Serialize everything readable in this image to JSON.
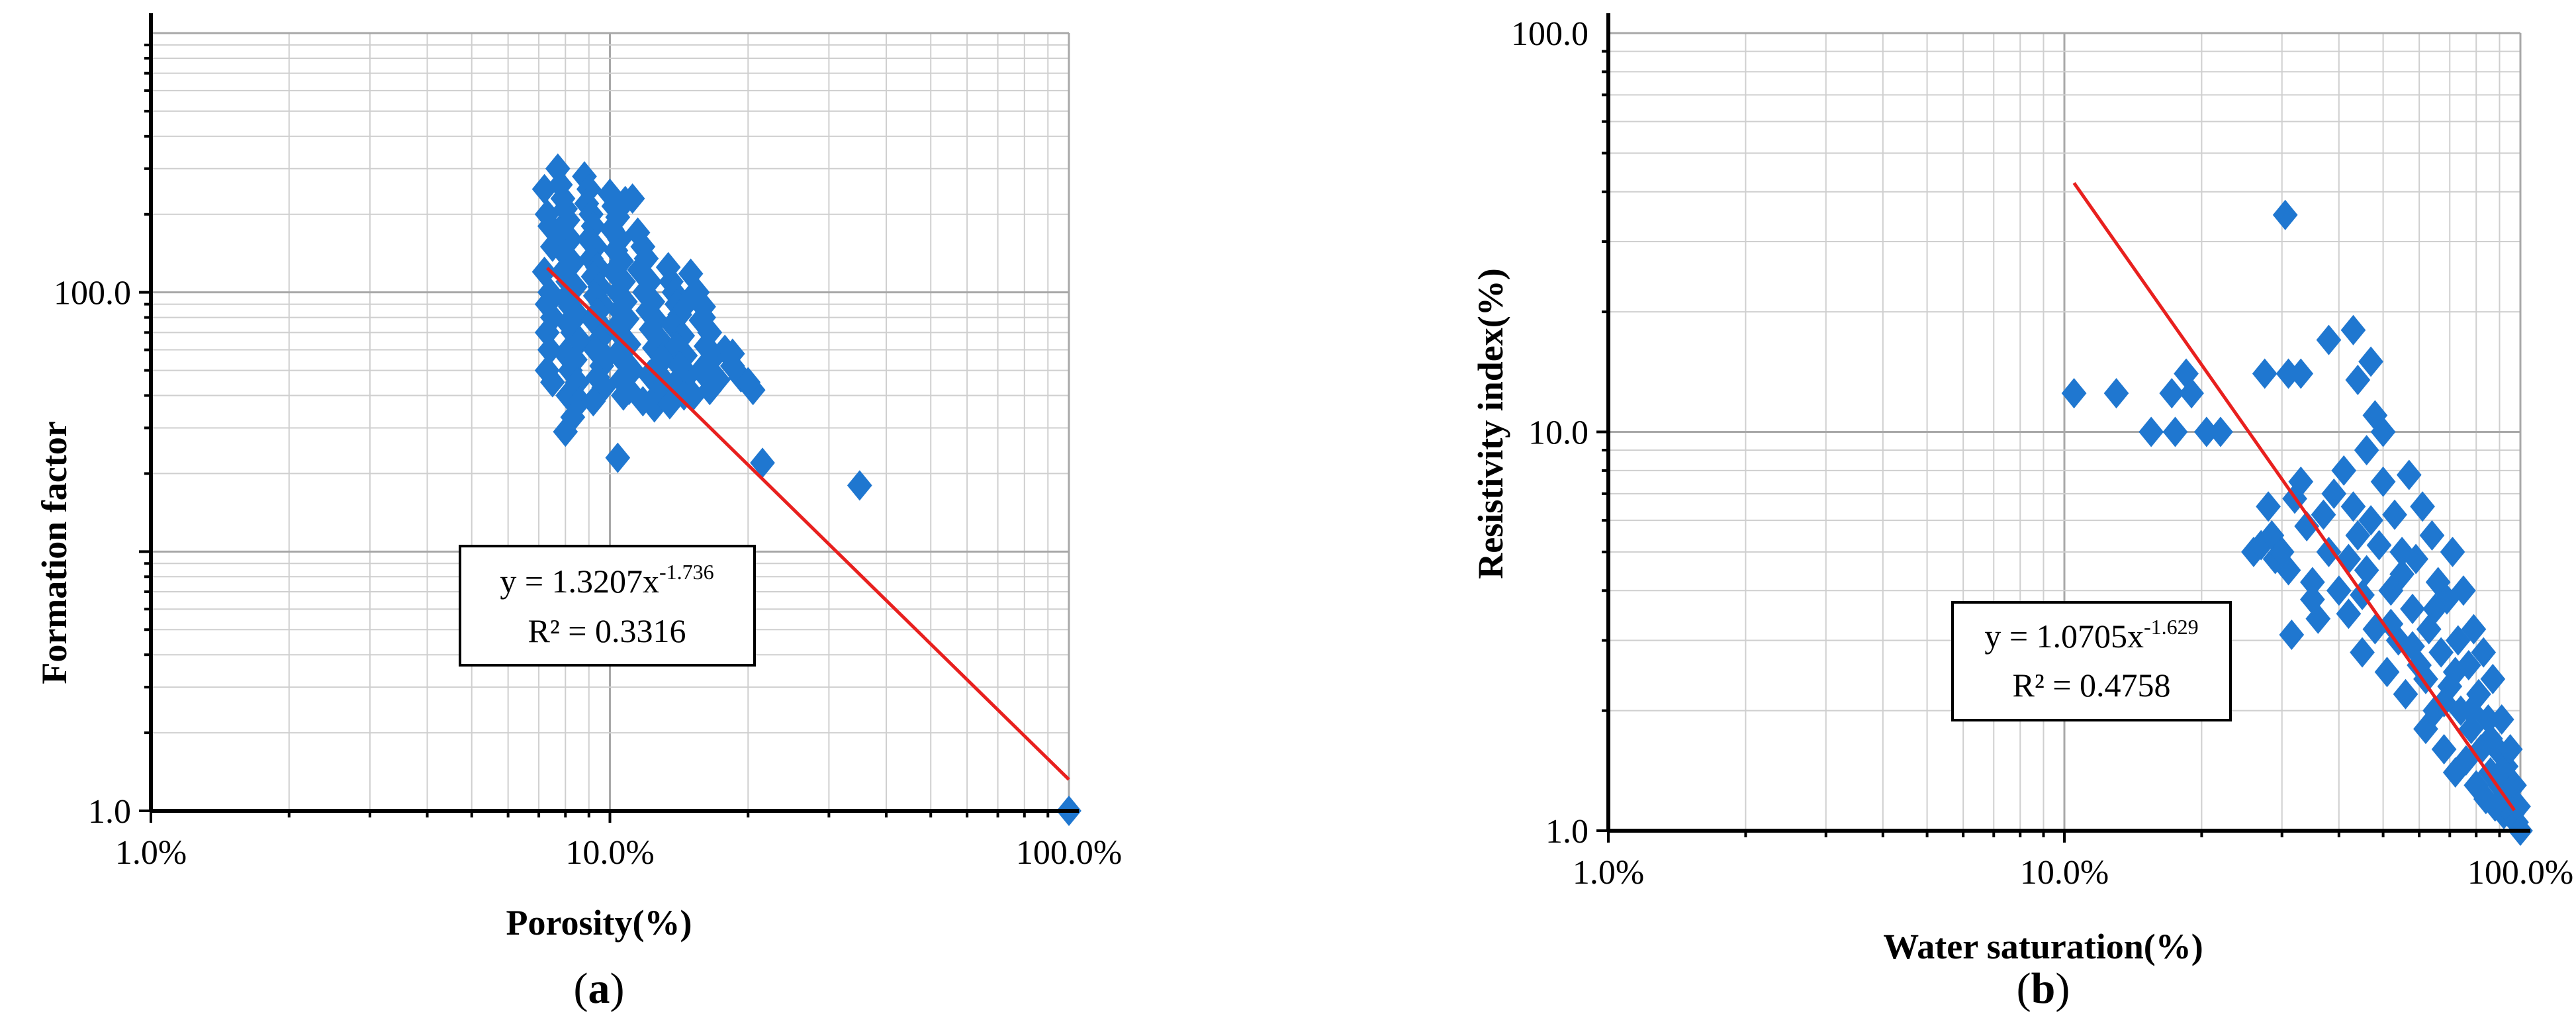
{
  "colors": {
    "marker": "#1f77d0",
    "fit_line": "#e8201e",
    "grid": "#c8c8c8",
    "axis": "#000000"
  },
  "chart_data": [
    {
      "panel": "a",
      "panel_label": "a",
      "type": "scatter",
      "title": "",
      "xlabel": "Porosity(%)",
      "ylabel": "Formation factor",
      "x_scale": "log",
      "y_scale": "log",
      "xlim": [
        0.01,
        1.0
      ],
      "ylim": [
        1.0,
        1000.0
      ],
      "x_ticks": [
        {
          "value": 0.01,
          "label": "1.0%"
        },
        {
          "value": 0.1,
          "label": "10.0%"
        },
        {
          "value": 1.0,
          "label": "100.0%"
        }
      ],
      "y_ticks": [
        {
          "value": 1.0,
          "label": "1.0"
        },
        {
          "value": 100.0,
          "label": "100.0"
        }
      ],
      "grid": true,
      "marker": "diamond",
      "trendline": {
        "type": "power",
        "a": 1.3207,
        "b": -1.736,
        "x_range": [
          0.073,
          1.0
        ]
      },
      "equation": {
        "prefix": "y = 1.3207x",
        "exponent": "-1.736",
        "r2": "R² = 0.3316"
      },
      "points": [
        [
          0.072,
          250
        ],
        [
          0.073,
          200
        ],
        [
          0.074,
          180
        ],
        [
          0.075,
          150
        ],
        [
          0.072,
          120
        ],
        [
          0.074,
          100
        ],
        [
          0.073,
          90
        ],
        [
          0.075,
          80
        ],
        [
          0.073,
          70
        ],
        [
          0.074,
          60
        ],
        [
          0.073,
          50
        ],
        [
          0.075,
          45
        ],
        [
          0.077,
          300
        ],
        [
          0.078,
          260
        ],
        [
          0.079,
          230
        ],
        [
          0.08,
          210
        ],
        [
          0.081,
          190
        ],
        [
          0.078,
          170
        ],
        [
          0.082,
          160
        ],
        [
          0.08,
          140
        ],
        [
          0.083,
          130
        ],
        [
          0.079,
          120
        ],
        [
          0.081,
          110
        ],
        [
          0.084,
          105
        ],
        [
          0.08,
          95
        ],
        [
          0.082,
          88
        ],
        [
          0.085,
          82
        ],
        [
          0.081,
          76
        ],
        [
          0.083,
          70
        ],
        [
          0.086,
          65
        ],
        [
          0.08,
          58
        ],
        [
          0.084,
          55
        ],
        [
          0.082,
          50
        ],
        [
          0.085,
          45
        ],
        [
          0.081,
          40
        ],
        [
          0.086,
          38
        ],
        [
          0.08,
          29
        ],
        [
          0.083,
          33
        ],
        [
          0.088,
          280
        ],
        [
          0.09,
          250
        ],
        [
          0.089,
          220
        ],
        [
          0.091,
          200
        ],
        [
          0.092,
          180
        ],
        [
          0.09,
          160
        ],
        [
          0.093,
          150
        ],
        [
          0.091,
          135
        ],
        [
          0.094,
          125
        ],
        [
          0.092,
          115
        ],
        [
          0.095,
          105
        ],
        [
          0.093,
          97
        ],
        [
          0.096,
          90
        ],
        [
          0.094,
          84
        ],
        [
          0.092,
          78
        ],
        [
          0.097,
          72
        ],
        [
          0.095,
          66
        ],
        [
          0.093,
          60
        ],
        [
          0.098,
          56
        ],
        [
          0.096,
          52
        ],
        [
          0.094,
          47
        ],
        [
          0.097,
          43
        ],
        [
          0.092,
          38
        ],
        [
          0.1,
          240
        ],
        [
          0.102,
          215
        ],
        [
          0.104,
          195
        ],
        [
          0.101,
          175
        ],
        [
          0.105,
          160
        ],
        [
          0.103,
          145
        ],
        [
          0.106,
          132
        ],
        [
          0.102,
          120
        ],
        [
          0.107,
          110
        ],
        [
          0.104,
          100
        ],
        [
          0.108,
          92
        ],
        [
          0.105,
          85
        ],
        [
          0.109,
          79
        ],
        [
          0.103,
          73
        ],
        [
          0.106,
          68
        ],
        [
          0.11,
          63
        ],
        [
          0.104,
          58
        ],
        [
          0.108,
          54
        ],
        [
          0.112,
          50
        ],
        [
          0.106,
          46
        ],
        [
          0.11,
          42
        ],
        [
          0.104,
          23
        ],
        [
          0.107,
          40
        ],
        [
          0.108,
          225
        ],
        [
          0.112,
          230
        ],
        [
          0.115,
          170
        ],
        [
          0.118,
          150
        ],
        [
          0.12,
          135
        ],
        [
          0.116,
          122
        ],
        [
          0.122,
          110
        ],
        [
          0.119,
          100
        ],
        [
          0.124,
          92
        ],
        [
          0.121,
          85
        ],
        [
          0.126,
          78
        ],
        [
          0.123,
          72
        ],
        [
          0.128,
          66
        ],
        [
          0.125,
          61
        ],
        [
          0.13,
          56
        ],
        [
          0.127,
          52
        ],
        [
          0.122,
          48
        ],
        [
          0.132,
          45
        ],
        [
          0.128,
          41
        ],
        [
          0.118,
          38
        ],
        [
          0.125,
          36
        ],
        [
          0.134,
          125
        ],
        [
          0.136,
          110
        ],
        [
          0.138,
          100
        ],
        [
          0.14,
          90
        ],
        [
          0.142,
          82
        ],
        [
          0.137,
          75
        ],
        [
          0.144,
          68
        ],
        [
          0.14,
          62
        ],
        [
          0.146,
          57
        ],
        [
          0.142,
          52
        ],
        [
          0.148,
          48
        ],
        [
          0.138,
          44
        ],
        [
          0.145,
          40
        ],
        [
          0.135,
          37
        ],
        [
          0.15,
          118
        ],
        [
          0.155,
          100
        ],
        [
          0.16,
          88
        ],
        [
          0.158,
          78
        ],
        [
          0.165,
          70
        ],
        [
          0.162,
          62
        ],
        [
          0.168,
          56
        ],
        [
          0.158,
          50
        ],
        [
          0.172,
          46
        ],
        [
          0.165,
          42
        ],
        [
          0.152,
          40
        ],
        [
          0.16,
          80
        ],
        [
          0.178,
          60
        ],
        [
          0.185,
          52
        ],
        [
          0.193,
          47
        ],
        [
          0.185,
          58
        ],
        [
          0.15,
          95
        ],
        [
          0.205,
          42
        ],
        [
          0.2,
          45
        ],
        [
          0.215,
          22
        ],
        [
          0.35,
          18
        ],
        [
          1.0,
          1.0
        ]
      ]
    },
    {
      "panel": "b",
      "panel_label": "b",
      "type": "scatter",
      "title": "",
      "xlabel": "Water saturation(%)",
      "ylabel": "Resistivity index(%)",
      "x_scale": "log",
      "y_scale": "log",
      "xlim": [
        0.01,
        1.0
      ],
      "ylim": [
        1.0,
        100.0
      ],
      "x_ticks": [
        {
          "value": 0.01,
          "label": "1.0%"
        },
        {
          "value": 0.1,
          "label": "10.0%"
        },
        {
          "value": 1.0,
          "label": "100.0%"
        }
      ],
      "y_ticks": [
        {
          "value": 1.0,
          "label": "1.0"
        },
        {
          "value": 10.0,
          "label": "10.0"
        },
        {
          "value": 100.0,
          "label": "100.0"
        }
      ],
      "grid": true,
      "marker": "diamond",
      "trendline": {
        "type": "power",
        "a": 1.0705,
        "b": -1.629,
        "x_range": [
          0.105,
          0.97
        ]
      },
      "equation": {
        "prefix": "y = 1.0705x",
        "exponent": "-1.629",
        "r2": "R² = 0.4758"
      },
      "points": [
        [
          0.105,
          12.5
        ],
        [
          0.13,
          12.5
        ],
        [
          0.155,
          10.0
        ],
        [
          0.172,
          12.5
        ],
        [
          0.175,
          10.0
        ],
        [
          0.185,
          14.0
        ],
        [
          0.19,
          12.5
        ],
        [
          0.205,
          10.0
        ],
        [
          0.22,
          10.0
        ],
        [
          0.275,
          14.0
        ],
        [
          0.31,
          14.0
        ],
        [
          0.33,
          14.0
        ],
        [
          0.305,
          35.0
        ],
        [
          0.38,
          17.0
        ],
        [
          0.43,
          18.0
        ],
        [
          0.47,
          15.0
        ],
        [
          0.44,
          13.5
        ],
        [
          0.48,
          11.0
        ],
        [
          0.46,
          9.0
        ],
        [
          0.5,
          10.0
        ],
        [
          0.26,
          5.0
        ],
        [
          0.27,
          5.2
        ],
        [
          0.28,
          6.5
        ],
        [
          0.285,
          5.5
        ],
        [
          0.29,
          4.8
        ],
        [
          0.3,
          5.0
        ],
        [
          0.31,
          4.5
        ],
        [
          0.315,
          3.1
        ],
        [
          0.32,
          6.8
        ],
        [
          0.33,
          7.5
        ],
        [
          0.34,
          5.8
        ],
        [
          0.35,
          4.2
        ],
        [
          0.36,
          3.4
        ],
        [
          0.37,
          6.2
        ],
        [
          0.38,
          5.0
        ],
        [
          0.39,
          7.0
        ],
        [
          0.4,
          4.0
        ],
        [
          0.41,
          8.0
        ],
        [
          0.42,
          3.5
        ],
        [
          0.43,
          6.5
        ],
        [
          0.44,
          5.5
        ],
        [
          0.45,
          2.8
        ],
        [
          0.46,
          4.5
        ],
        [
          0.47,
          6.0
        ],
        [
          0.48,
          3.2
        ],
        [
          0.49,
          5.2
        ],
        [
          0.5,
          7.5
        ],
        [
          0.51,
          2.5
        ],
        [
          0.52,
          4.0
        ],
        [
          0.53,
          6.2
        ],
        [
          0.54,
          3.0
        ],
        [
          0.55,
          5.0
        ],
        [
          0.56,
          2.2
        ],
        [
          0.57,
          7.8
        ],
        [
          0.58,
          3.6
        ],
        [
          0.59,
          4.8
        ],
        [
          0.6,
          2.6
        ],
        [
          0.61,
          6.5
        ],
        [
          0.62,
          1.8
        ],
        [
          0.63,
          3.2
        ],
        [
          0.64,
          5.5
        ],
        [
          0.65,
          2.0
        ],
        [
          0.66,
          4.2
        ],
        [
          0.67,
          2.8
        ],
        [
          0.68,
          1.6
        ],
        [
          0.69,
          3.8
        ],
        [
          0.7,
          2.3
        ],
        [
          0.71,
          5.0
        ],
        [
          0.72,
          1.4
        ],
        [
          0.73,
          3.0
        ],
        [
          0.74,
          2.0
        ],
        [
          0.75,
          4.0
        ],
        [
          0.76,
          1.5
        ],
        [
          0.77,
          2.6
        ],
        [
          0.78,
          1.8
        ],
        [
          0.79,
          3.2
        ],
        [
          0.8,
          1.3
        ],
        [
          0.81,
          2.2
        ],
        [
          0.82,
          1.6
        ],
        [
          0.83,
          2.8
        ],
        [
          0.84,
          1.2
        ],
        [
          0.85,
          1.9
        ],
        [
          0.86,
          1.4
        ],
        [
          0.87,
          2.4
        ],
        [
          0.88,
          1.15
        ],
        [
          0.89,
          1.6
        ],
        [
          0.9,
          1.3
        ],
        [
          0.91,
          1.9
        ],
        [
          0.92,
          1.1
        ],
        [
          0.93,
          1.45
        ],
        [
          0.94,
          1.2
        ],
        [
          0.95,
          1.6
        ],
        [
          0.96,
          1.1
        ],
        [
          0.97,
          1.3
        ],
        [
          0.98,
          1.05
        ],
        [
          0.99,
          1.15
        ],
        [
          0.35,
          3.8
        ],
        [
          0.42,
          4.8
        ],
        [
          0.52,
          3.3
        ],
        [
          0.58,
          2.9
        ],
        [
          0.65,
          3.6
        ],
        [
          0.72,
          2.5
        ],
        [
          0.45,
          3.9
        ],
        [
          0.55,
          4.4
        ],
        [
          0.62,
          2.4
        ],
        [
          0.68,
          2.1
        ],
        [
          0.78,
          2.0
        ],
        [
          0.86,
          1.7
        ],
        [
          1.0,
          1.0
        ]
      ]
    }
  ]
}
